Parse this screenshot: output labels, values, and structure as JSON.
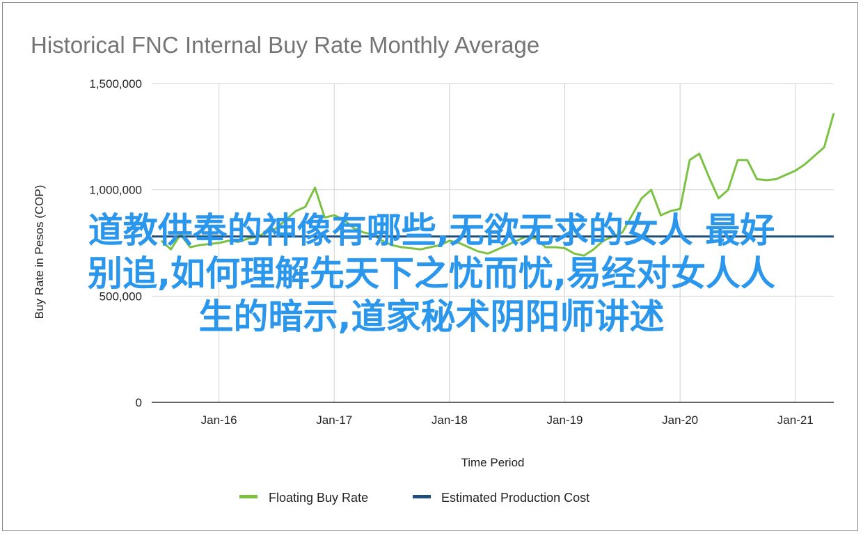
{
  "chart_data": {
    "type": "line",
    "title": "Historical FNC Internal Buy Rate Monthly Average",
    "xlabel": "Time Period",
    "ylabel": "Buy Rate in Pesos (COP)",
    "ylim": [
      0,
      1500000
    ],
    "xlim": [
      "2015-06",
      "2021-04"
    ],
    "y_ticks": [
      "0",
      "500,000",
      "1,000,000",
      "1,500,000"
    ],
    "x_ticks": [
      "Jan-16",
      "Jan-17",
      "Jan-18",
      "Jan-19",
      "Jan-20",
      "Jan-21"
    ],
    "grid": true,
    "legend_position": "bottom",
    "series": [
      {
        "name": "Floating Buy Rate",
        "color": "#7cc242",
        "points": [
          [
            "2015-07",
            760000
          ],
          [
            "2015-08",
            720000
          ],
          [
            "2015-09",
            790000
          ],
          [
            "2015-10",
            730000
          ],
          [
            "2015-11",
            740000
          ],
          [
            "2015-12",
            745000
          ],
          [
            "2016-01",
            750000
          ],
          [
            "2016-02",
            760000
          ],
          [
            "2016-03",
            755000
          ],
          [
            "2016-04",
            770000
          ],
          [
            "2016-05",
            780000
          ],
          [
            "2016-06",
            800000
          ],
          [
            "2016-07",
            820000
          ],
          [
            "2016-08",
            860000
          ],
          [
            "2016-09",
            900000
          ],
          [
            "2016-10",
            920000
          ],
          [
            "2016-11",
            1010000
          ],
          [
            "2016-12",
            870000
          ],
          [
            "2017-01",
            880000
          ],
          [
            "2017-02",
            860000
          ],
          [
            "2017-03",
            820000
          ],
          [
            "2017-04",
            800000
          ],
          [
            "2017-05",
            790000
          ],
          [
            "2017-06",
            760000
          ],
          [
            "2017-07",
            740000
          ],
          [
            "2017-08",
            730000
          ],
          [
            "2017-09",
            725000
          ],
          [
            "2017-10",
            720000
          ],
          [
            "2017-11",
            730000
          ],
          [
            "2017-12",
            740000
          ],
          [
            "2018-01",
            760000
          ],
          [
            "2018-02",
            750000
          ],
          [
            "2018-03",
            730000
          ],
          [
            "2018-04",
            710000
          ],
          [
            "2018-05",
            700000
          ],
          [
            "2018-06",
            720000
          ],
          [
            "2018-07",
            740000
          ],
          [
            "2018-08",
            760000
          ],
          [
            "2018-09",
            780000
          ],
          [
            "2018-10",
            770000
          ],
          [
            "2018-11",
            730000
          ],
          [
            "2018-12",
            730000
          ],
          [
            "2019-01",
            725000
          ],
          [
            "2019-02",
            700000
          ],
          [
            "2019-03",
            690000
          ],
          [
            "2019-04",
            720000
          ],
          [
            "2019-05",
            760000
          ],
          [
            "2019-06",
            780000
          ],
          [
            "2019-07",
            800000
          ],
          [
            "2019-08",
            880000
          ],
          [
            "2019-09",
            960000
          ],
          [
            "2019-10",
            1000000
          ],
          [
            "2019-11",
            880000
          ],
          [
            "2019-12",
            900000
          ],
          [
            "2020-01",
            910000
          ],
          [
            "2020-02",
            1140000
          ],
          [
            "2020-03",
            1170000
          ],
          [
            "2020-04",
            1060000
          ],
          [
            "2020-05",
            960000
          ],
          [
            "2020-06",
            1000000
          ],
          [
            "2020-07",
            1140000
          ],
          [
            "2020-08",
            1140000
          ],
          [
            "2020-09",
            1050000
          ],
          [
            "2020-10",
            1045000
          ],
          [
            "2020-11",
            1050000
          ],
          [
            "2020-12",
            1070000
          ],
          [
            "2021-01",
            1090000
          ],
          [
            "2021-02",
            1120000
          ],
          [
            "2021-03",
            1160000
          ],
          [
            "2021-04",
            1200000
          ],
          [
            "2021-05",
            1360000
          ]
        ]
      },
      {
        "name": "Estimated Production Cost",
        "color": "#1f4e79",
        "points": [
          [
            "2015-06",
            780000
          ],
          [
            "2021-05",
            780000
          ]
        ]
      }
    ]
  },
  "overlay": {
    "lines": [
      "道教供奉的神像有哪些,无欲无求的女人 最好",
      "别追,如何理解先天下之忧而忧,易经对女人人",
      "生的暗示,道家秘术阴阳师讲述"
    ],
    "color": "#2a96ec"
  }
}
